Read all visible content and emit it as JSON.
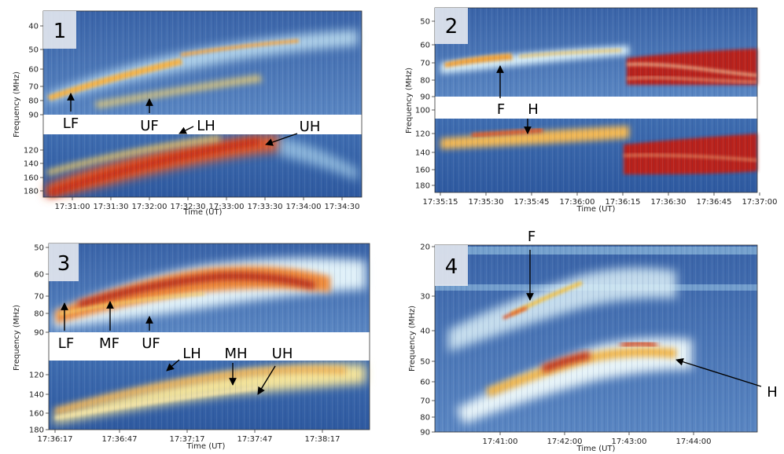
{
  "figure": {
    "description_free": true
  },
  "chart_data": [
    {
      "type": "heatmap",
      "panel_label": "1",
      "xlabel": "Time (UT)",
      "ylabel": "Frequency (MHz)",
      "x_ticks": [
        "17:31:00",
        "17:31:30",
        "17:32:00",
        "17:32:30",
        "17:33:00",
        "17:33:30",
        "17:34:00",
        "17:34:30"
      ],
      "upper_band_ticks": [
        "40",
        "50",
        "60",
        "70",
        "80",
        "90"
      ],
      "gap_tick": "90",
      "lower_band_ticks": [
        "120",
        "140",
        "160",
        "180"
      ],
      "annotations": [
        "LF",
        "UF",
        "LH",
        "UH"
      ]
    },
    {
      "type": "heatmap",
      "panel_label": "2",
      "xlabel": "Time (UT)",
      "ylabel": "Frequency (MHz)",
      "x_ticks": [
        "17:35:15",
        "17:35:30",
        "17:35:45",
        "17:36:00",
        "17:36:15",
        "17:36:30",
        "17:36:45",
        "17:37:00"
      ],
      "upper_band_ticks": [
        "50",
        "60",
        "70",
        "80",
        "90"
      ],
      "gap_tick": "100",
      "lower_band_ticks": [
        "120",
        "140",
        "160",
        "180"
      ],
      "annotations": [
        "F",
        "H"
      ]
    },
    {
      "type": "heatmap",
      "panel_label": "3",
      "xlabel": "Time (UT)",
      "ylabel": "Frequency (MHz)",
      "x_ticks": [
        "17:36:17",
        "17:36:47",
        "17:37:17",
        "17:37:47",
        "17:38:17"
      ],
      "upper_band_ticks": [
        "50",
        "60",
        "70",
        "80",
        "90"
      ],
      "gap_tick": "",
      "lower_band_ticks": [
        "120",
        "140",
        "160",
        "180"
      ],
      "annotations": [
        "LF",
        "MF",
        "UF",
        "LH",
        "MH",
        "UH"
      ]
    },
    {
      "type": "heatmap",
      "panel_label": "4",
      "xlabel": "Time (UT)",
      "ylabel": "Frequency (MHz)",
      "x_ticks": [
        "17:41:00",
        "17:42:00",
        "17:43:00",
        "17:44:00"
      ],
      "y_ticks": [
        "20",
        "30",
        "40",
        "50",
        "60",
        "70",
        "80",
        "90"
      ],
      "annotations": [
        "F",
        "H"
      ]
    }
  ]
}
